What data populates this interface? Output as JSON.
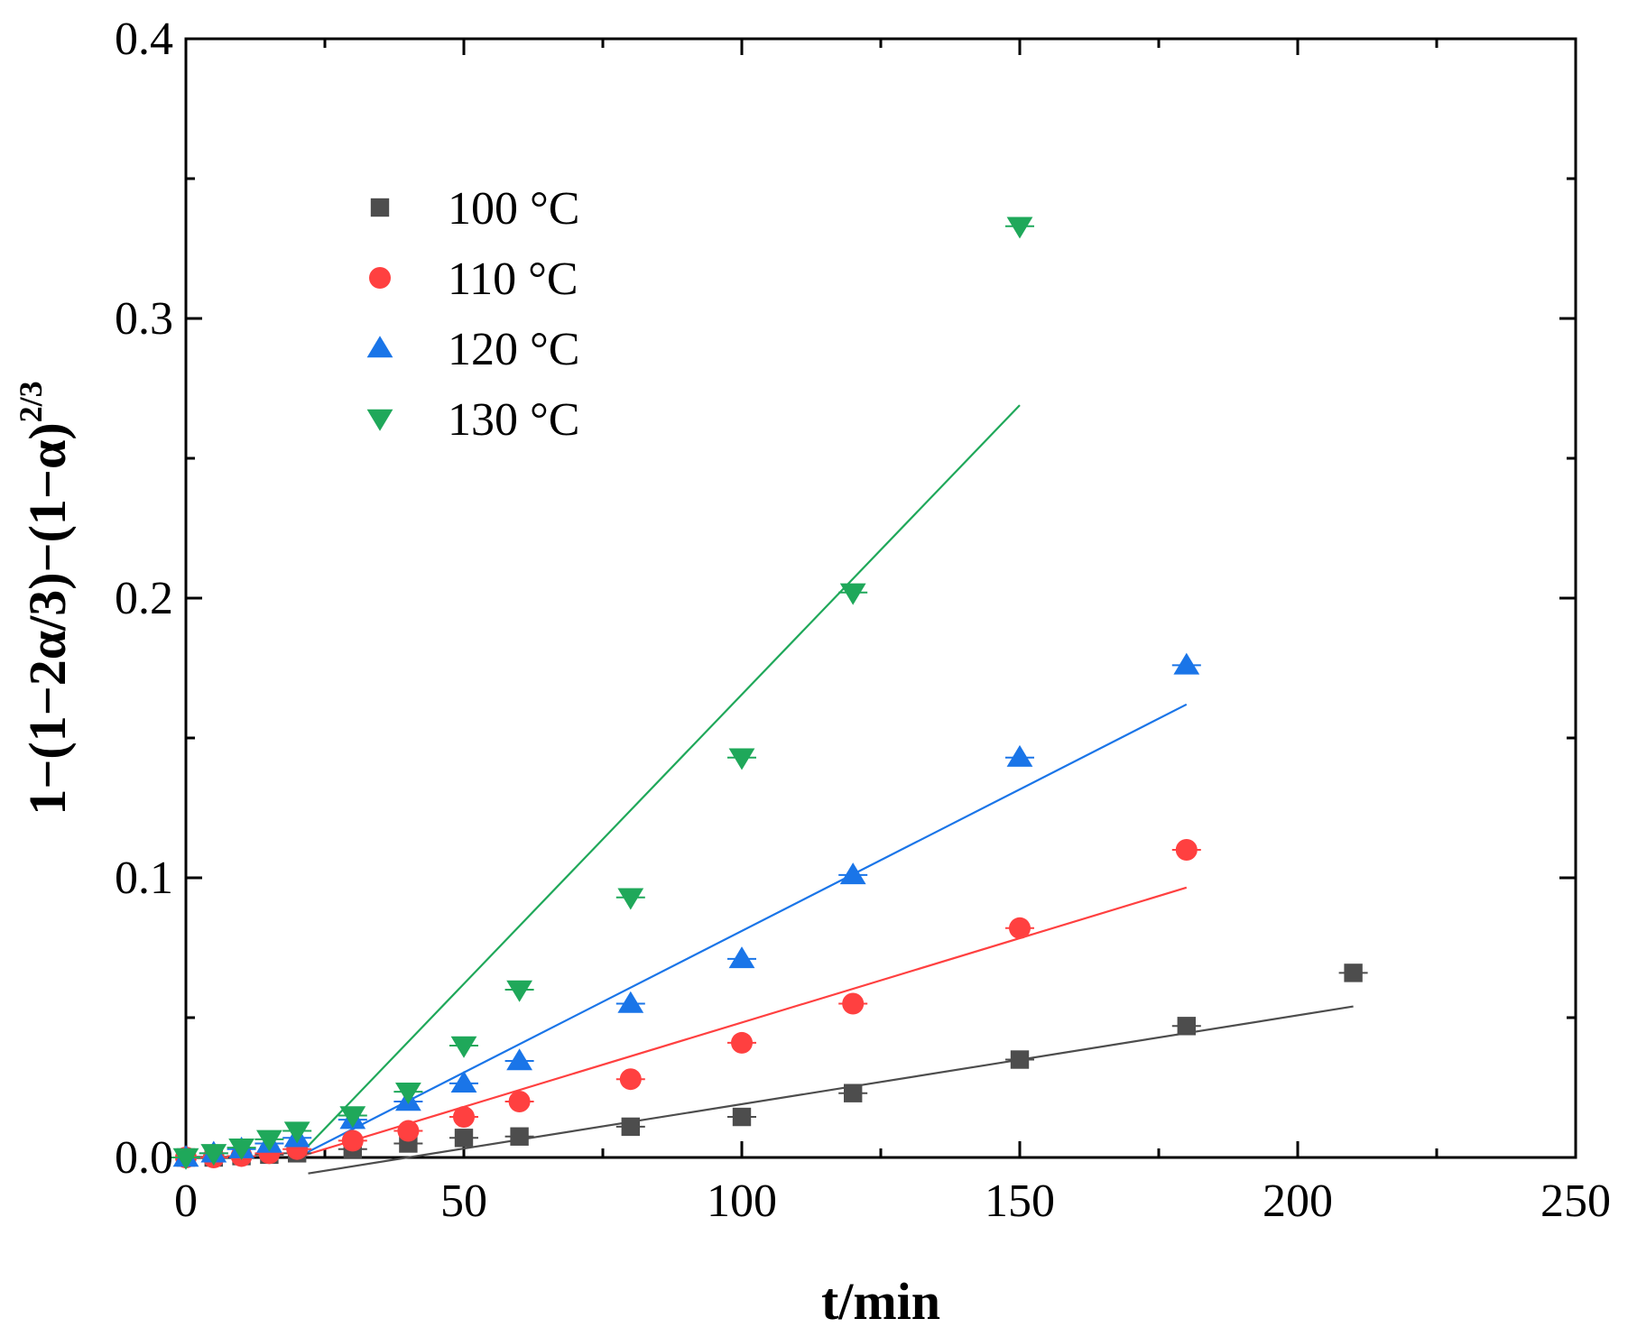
{
  "chart_data": {
    "type": "scatter",
    "xlabel": "t/min",
    "ylabel_main": "1−(1−2α/3)−(1−α)",
    "ylabel_exponent": "2/3",
    "xlim": [
      0,
      250
    ],
    "ylim": [
      0,
      0.4
    ],
    "x_ticks": [
      0,
      50,
      100,
      150,
      200,
      250
    ],
    "x_tick_labels": [
      "0",
      "50",
      "100",
      "150",
      "200",
      "250"
    ],
    "y_ticks": [
      0,
      0.1,
      0.2,
      0.3,
      0.4
    ],
    "y_tick_labels": [
      "0.0",
      "0.1",
      "0.2",
      "0.3",
      "0.4"
    ],
    "legend_position": "top-left",
    "series": [
      {
        "name": "100 °C",
        "marker": "square",
        "color": "#4d4d4d",
        "x": [
          0,
          5,
          10,
          15,
          20,
          30,
          40,
          50,
          60,
          80,
          100,
          120,
          150,
          180,
          210
        ],
        "y": [
          0.0,
          0.0,
          0.0005,
          0.001,
          0.0015,
          0.003,
          0.005,
          0.007,
          0.0075,
          0.011,
          0.0145,
          0.023,
          0.035,
          0.047,
          0.066
        ],
        "fit": {
          "x": [
            22,
            210
          ],
          "y": [
            -0.0057,
            0.054
          ]
        }
      },
      {
        "name": "110 °C",
        "marker": "circle",
        "color": "#ff4040",
        "x": [
          0,
          5,
          10,
          15,
          20,
          30,
          40,
          50,
          60,
          80,
          100,
          120,
          150,
          180
        ],
        "y": [
          0.0,
          0.0,
          0.0005,
          0.0015,
          0.003,
          0.006,
          0.0095,
          0.0145,
          0.02,
          0.028,
          0.041,
          0.055,
          0.082,
          0.11
        ],
        "fit": {
          "x": [
            20,
            180
          ],
          "y": [
            0.0,
            0.0965
          ]
        }
      },
      {
        "name": "120 °C",
        "marker": "triangle-up",
        "color": "#1a75e8",
        "x": [
          0,
          5,
          10,
          15,
          20,
          30,
          40,
          50,
          60,
          80,
          100,
          120,
          150,
          180
        ],
        "y": [
          0.0,
          0.0015,
          0.003,
          0.005,
          0.007,
          0.0135,
          0.02,
          0.0265,
          0.0345,
          0.055,
          0.071,
          0.101,
          0.143,
          0.176
        ],
        "fit": {
          "x": [
            20,
            180
          ],
          "y": [
            0.0,
            0.162
          ]
        }
      },
      {
        "name": "130 °C",
        "marker": "triangle-down",
        "color": "#1fa85a",
        "x": [
          0,
          5,
          10,
          15,
          20,
          30,
          40,
          50,
          60,
          80,
          100,
          120,
          150
        ],
        "y": [
          0.0,
          0.0015,
          0.0035,
          0.0065,
          0.0095,
          0.015,
          0.0235,
          0.04,
          0.06,
          0.093,
          0.143,
          0.202,
          0.333
        ],
        "fit": {
          "x": [
            20,
            150
          ],
          "y": [
            0.0,
            0.269
          ]
        }
      }
    ]
  }
}
